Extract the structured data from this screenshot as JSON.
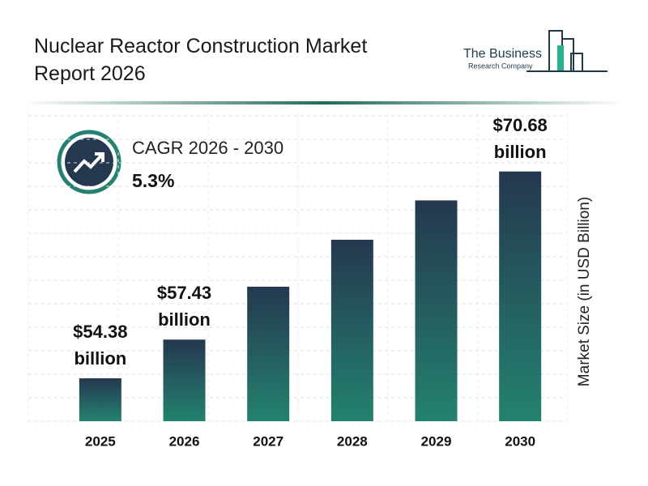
{
  "chart_data": {
    "type": "bar",
    "title": "Nuclear Reactor Construction Market Report 2026",
    "brand": [
      "The Business",
      "Research Company"
    ],
    "cagr_label": "CAGR 2026 - 2030",
    "cagr_value": "5.3%",
    "y_label": "Market Size (in USD Billion)",
    "categories": [
      "2025",
      "2026",
      "2027",
      "2028",
      "2029",
      "2030"
    ],
    "values": [
      54.38,
      57.43,
      61.6,
      65.3,
      68.4,
      70.68
    ],
    "value_labels": [
      "$54.38 billion",
      "$57.43 billion",
      null,
      null,
      null,
      "$70.68 billion"
    ],
    "color": [
      "#24384f",
      "#23826f"
    ],
    "ylim": [
      51,
      72
    ],
    "grid": true
  }
}
